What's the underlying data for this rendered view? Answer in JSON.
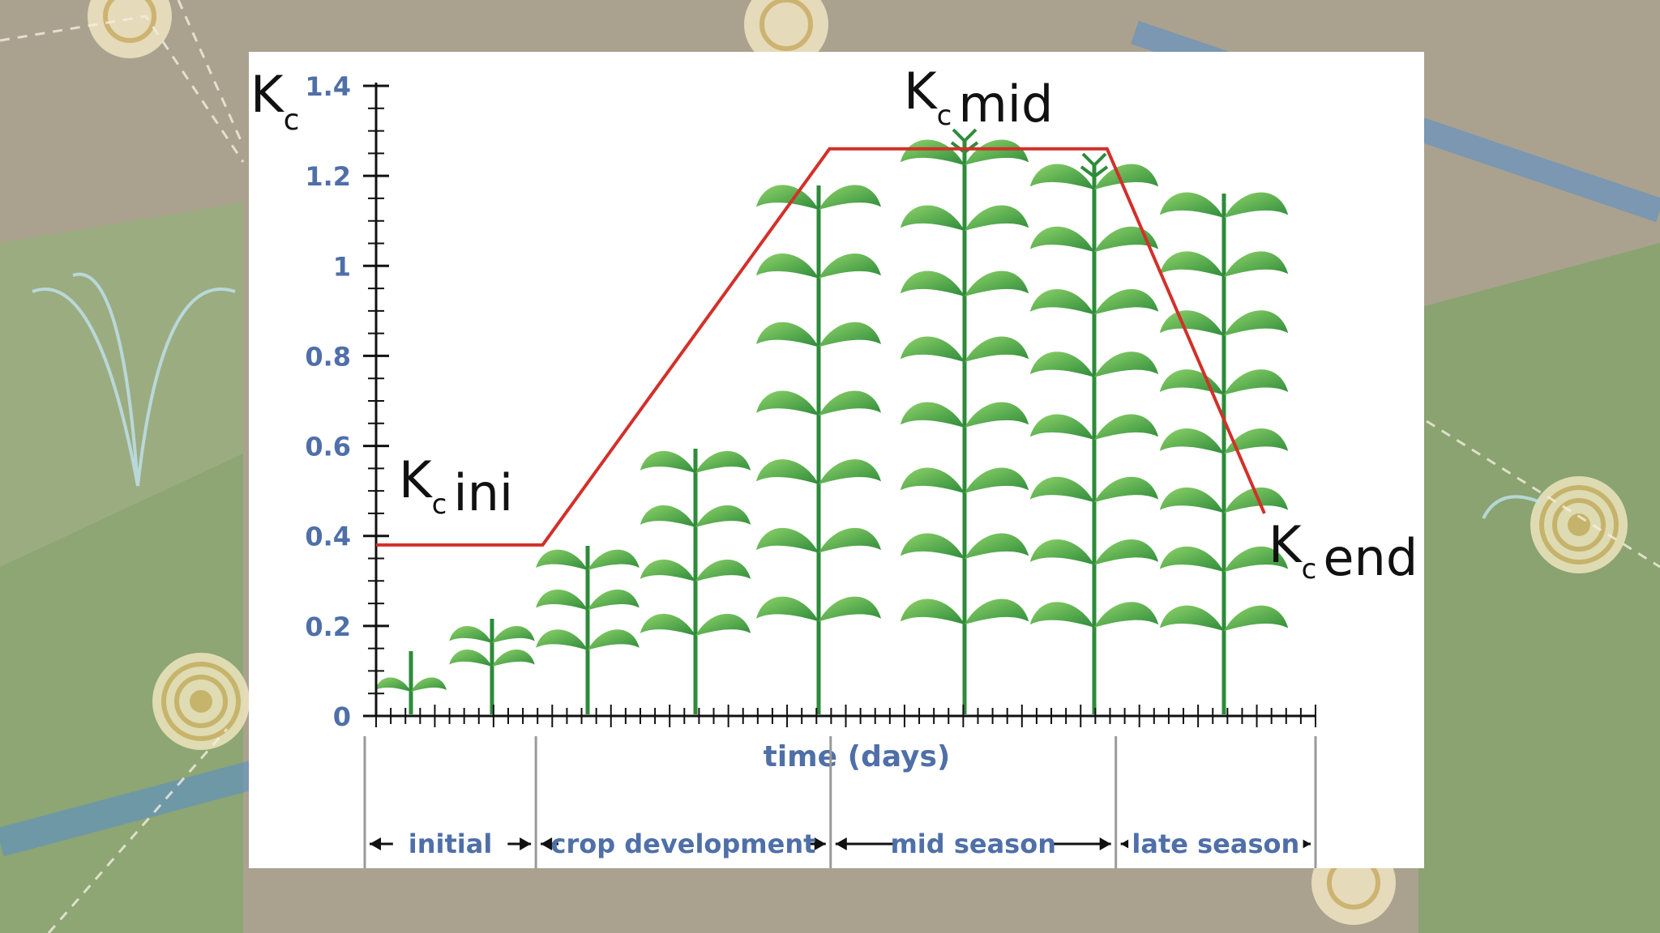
{
  "chart_data": {
    "type": "line",
    "ylabel": {
      "main": "K",
      "sub": "c"
    },
    "xlabel": "time (days)",
    "ylim": [
      0,
      1.4
    ],
    "yticks": [
      "0",
      "0.2",
      "0.4",
      "0.6",
      "0.8",
      "1",
      "1.2",
      "1.4"
    ],
    "grid": false,
    "series": [
      {
        "color": "#d2302a",
        "points": [
          {
            "t": 0.0,
            "kc": 0.38
          },
          {
            "t": 0.18,
            "kc": 0.38
          },
          {
            "t": 0.49,
            "kc": 1.26
          },
          {
            "t": 0.79,
            "kc": 1.26
          },
          {
            "t": 0.96,
            "kc": 0.45
          }
        ]
      }
    ],
    "annotations": [
      {
        "id": "ini",
        "main": "K",
        "sub": "c",
        "text": "ini"
      },
      {
        "id": "mid",
        "main": "K",
        "sub": "c",
        "text": "mid"
      },
      {
        "id": "end",
        "main": "K",
        "sub": "c",
        "text": "end"
      }
    ],
    "stages": [
      {
        "label": "initial",
        "start": 0.0,
        "end": 0.18
      },
      {
        "label": "crop development",
        "start": 0.18,
        "end": 0.49
      },
      {
        "label": "mid season",
        "start": 0.49,
        "end": 0.79
      },
      {
        "label": "late season",
        "start": 0.79,
        "end": 1.0
      }
    ],
    "colors": {
      "line": "#d2302a",
      "axis": "#111111",
      "label": "#4f6fa8",
      "plant_light": "#8fd46a",
      "plant_dark": "#2e8b3a"
    }
  }
}
